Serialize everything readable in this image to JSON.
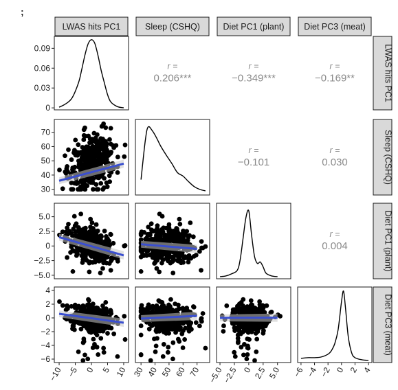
{
  "panel_tag": ";",
  "colors": {
    "strip_bg": "#d9d9d9",
    "border": "#1a1a1a",
    "points": "#000000",
    "fit_line": "#3a4fd0",
    "fit_band": "#c8c8c8",
    "corr_text": "#8a8a8a"
  },
  "chart_data": {
    "type": "pairs-matrix",
    "variables": [
      "LWAS hits PC1",
      "Sleep (CSHQ)",
      "Diet PC1 (plant)",
      "Diet PC3 (meat)"
    ],
    "x_ticks": [
      [
        "−10",
        "−5",
        "0",
        "5",
        "10"
      ],
      [
        "30",
        "40",
        "50",
        "60",
        "70"
      ],
      [
        "−5.0",
        "−2.5",
        "0",
        "2.5",
        "5.0"
      ],
      [
        "−6",
        "−4",
        "−2",
        "0",
        "2",
        "4"
      ]
    ],
    "y_ticks": [
      [
        "0",
        "0.03",
        "0.06",
        "0.09"
      ],
      [
        "30",
        "40",
        "50",
        "60",
        "70"
      ],
      [
        "−5.0",
        "−2.5",
        "0",
        "2.5",
        "5.0"
      ],
      [
        "−6",
        "−4",
        "−2",
        "0",
        "2",
        "4"
      ]
    ],
    "axis_ranges": {
      "LWAS hits PC1": [
        -11.5,
        11.5
      ],
      "Sleep (CSHQ)": [
        26,
        79
      ],
      "Diet PC1 (plant)": [
        -5.6,
        7.3
      ],
      "Diet PC3 (meat)": [
        -6.5,
        4.5
      ],
      "density_y": [
        -0.003,
        0.108
      ]
    },
    "density_lwas": {
      "x": [
        -10,
        -8,
        -6,
        -4,
        -3,
        -2,
        -1,
        0,
        1,
        2,
        3,
        4,
        5,
        6,
        8,
        10
      ],
      "y": [
        0.001,
        0.006,
        0.015,
        0.038,
        0.058,
        0.08,
        0.097,
        0.103,
        0.098,
        0.08,
        0.057,
        0.038,
        0.02,
        0.009,
        0.002,
        0.0
      ]
    },
    "density_sleep": {
      "x": [
        30,
        33,
        35,
        38,
        41,
        44,
        48,
        52,
        56,
        60,
        64,
        68,
        72,
        76
      ],
      "y": [
        0.2,
        0.75,
        0.95,
        0.9,
        0.8,
        0.68,
        0.55,
        0.43,
        0.3,
        0.25,
        0.17,
        0.1,
        0.06,
        0.04
      ]
    },
    "density_plant": {
      "x": [
        -5.0,
        -4.0,
        -3.0,
        -2.0,
        -1.5,
        -1.0,
        -0.5,
        0.0,
        0.5,
        1.0,
        1.5,
        2.0,
        2.5,
        3.0,
        4.0,
        5.0
      ],
      "y": [
        0.01,
        0.02,
        0.05,
        0.1,
        0.25,
        0.55,
        0.85,
        0.95,
        0.6,
        0.3,
        0.2,
        0.22,
        0.15,
        0.06,
        0.02,
        0.01
      ]
    },
    "density_meat": {
      "x": [
        -6,
        -5,
        -4,
        -3,
        -2,
        -1.5,
        -1,
        -0.5,
        0,
        0.3,
        0.6,
        1,
        1.5,
        2,
        3,
        4
      ],
      "y": [
        0.04,
        0.05,
        0.05,
        0.06,
        0.1,
        0.15,
        0.25,
        0.45,
        0.85,
        1.0,
        0.75,
        0.35,
        0.12,
        0.05,
        0.02,
        0.01
      ]
    },
    "correlations": [
      {
        "pair": [
          "LWAS hits PC1",
          "Sleep (CSHQ)"
        ],
        "r": "0.206***"
      },
      {
        "pair": [
          "LWAS hits PC1",
          "Diet PC1 (plant)"
        ],
        "r": "−0.349***"
      },
      {
        "pair": [
          "LWAS hits PC1",
          "Diet PC3 (meat)"
        ],
        "r": "−0.169**"
      },
      {
        "pair": [
          "Sleep (CSHQ)",
          "Diet PC1 (plant)"
        ],
        "r": "−0.101"
      },
      {
        "pair": [
          "Sleep (CSHQ)",
          "Diet PC3 (meat)"
        ],
        "r": "0.030"
      },
      {
        "pair": [
          "Diet PC1 (plant)",
          "Diet PC3 (meat)"
        ],
        "r": "0.004"
      }
    ],
    "r_label": "r =",
    "fit_lines": {
      "sleep_vs_lwas": {
        "x": [
          -10,
          10
        ],
        "y": [
          36,
          48
        ]
      },
      "plant_vs_lwas": {
        "x": [
          -10,
          10
        ],
        "y": [
          1.5,
          -1.6
        ]
      },
      "plant_vs_sleep": {
        "x": [
          30,
          70
        ],
        "y": [
          0.3,
          -0.5
        ]
      },
      "meat_vs_lwas": {
        "x": [
          -10,
          10
        ],
        "y": [
          0.6,
          -0.7
        ]
      },
      "meat_vs_sleep": {
        "x": [
          30,
          70
        ],
        "y": [
          -0.1,
          0.3
        ]
      },
      "meat_vs_plant": {
        "x": [
          -5,
          5
        ],
        "y": [
          0.0,
          0.03
        ]
      }
    }
  }
}
